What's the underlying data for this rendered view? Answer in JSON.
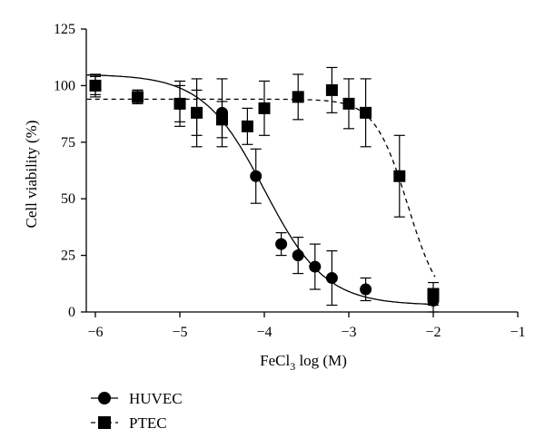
{
  "chart_data": {
    "type": "scatter",
    "xlabel": {
      "prefix": "FeCl",
      "sub": "3",
      "suffix": " log (M)"
    },
    "ylabel": "Cell viability (%)",
    "xlim": [
      -6.2,
      -1
    ],
    "ylim": [
      0,
      125
    ],
    "xticks": [
      -6,
      -5,
      -4,
      -3,
      -2,
      -1
    ],
    "xtick_labels": [
      "−6",
      "−5",
      "−4",
      "−3",
      "−2",
      "−1"
    ],
    "yticks": [
      0,
      25,
      50,
      75,
      100,
      125
    ],
    "ytick_labels": [
      "0",
      "25",
      "50",
      "75",
      "100",
      "125"
    ],
    "series": [
      {
        "name": "HUVEC",
        "marker": "circle",
        "line": "solid",
        "x": [
          -6,
          -5.5,
          -5,
          -4.8,
          -4.5,
          -4.1,
          -3.8,
          -3.6,
          -3.4,
          -3.2,
          -2.8,
          -2
        ],
        "y": [
          100,
          95,
          92,
          88,
          88,
          60,
          30,
          25,
          20,
          15,
          10,
          5
        ],
        "err": [
          4,
          3,
          8,
          10,
          15,
          12,
          5,
          8,
          10,
          12,
          5,
          5
        ],
        "fit": {
          "top": 105,
          "bottom": 3,
          "logEC50": -4.0,
          "hill": 1.2
        }
      },
      {
        "name": "PTEC",
        "marker": "square",
        "line": "dashed",
        "x": [
          -6,
          -5.5,
          -5,
          -4.8,
          -4.5,
          -4.2,
          -4.0,
          -3.6,
          -3.2,
          -3.0,
          -2.8,
          -2.4,
          -2
        ],
        "y": [
          100,
          95,
          92,
          88,
          85,
          82,
          90,
          95,
          98,
          92,
          88,
          60,
          8
        ],
        "err": [
          5,
          3,
          10,
          15,
          8,
          8,
          12,
          10,
          10,
          11,
          15,
          18,
          5
        ],
        "fit": {
          "top": 94,
          "bottom": 0,
          "logEC50": -2.3,
          "hill": 2.2
        }
      }
    ]
  },
  "legend": {
    "items": [
      {
        "label": "HUVEC"
      },
      {
        "label": "PTEC"
      }
    ]
  }
}
